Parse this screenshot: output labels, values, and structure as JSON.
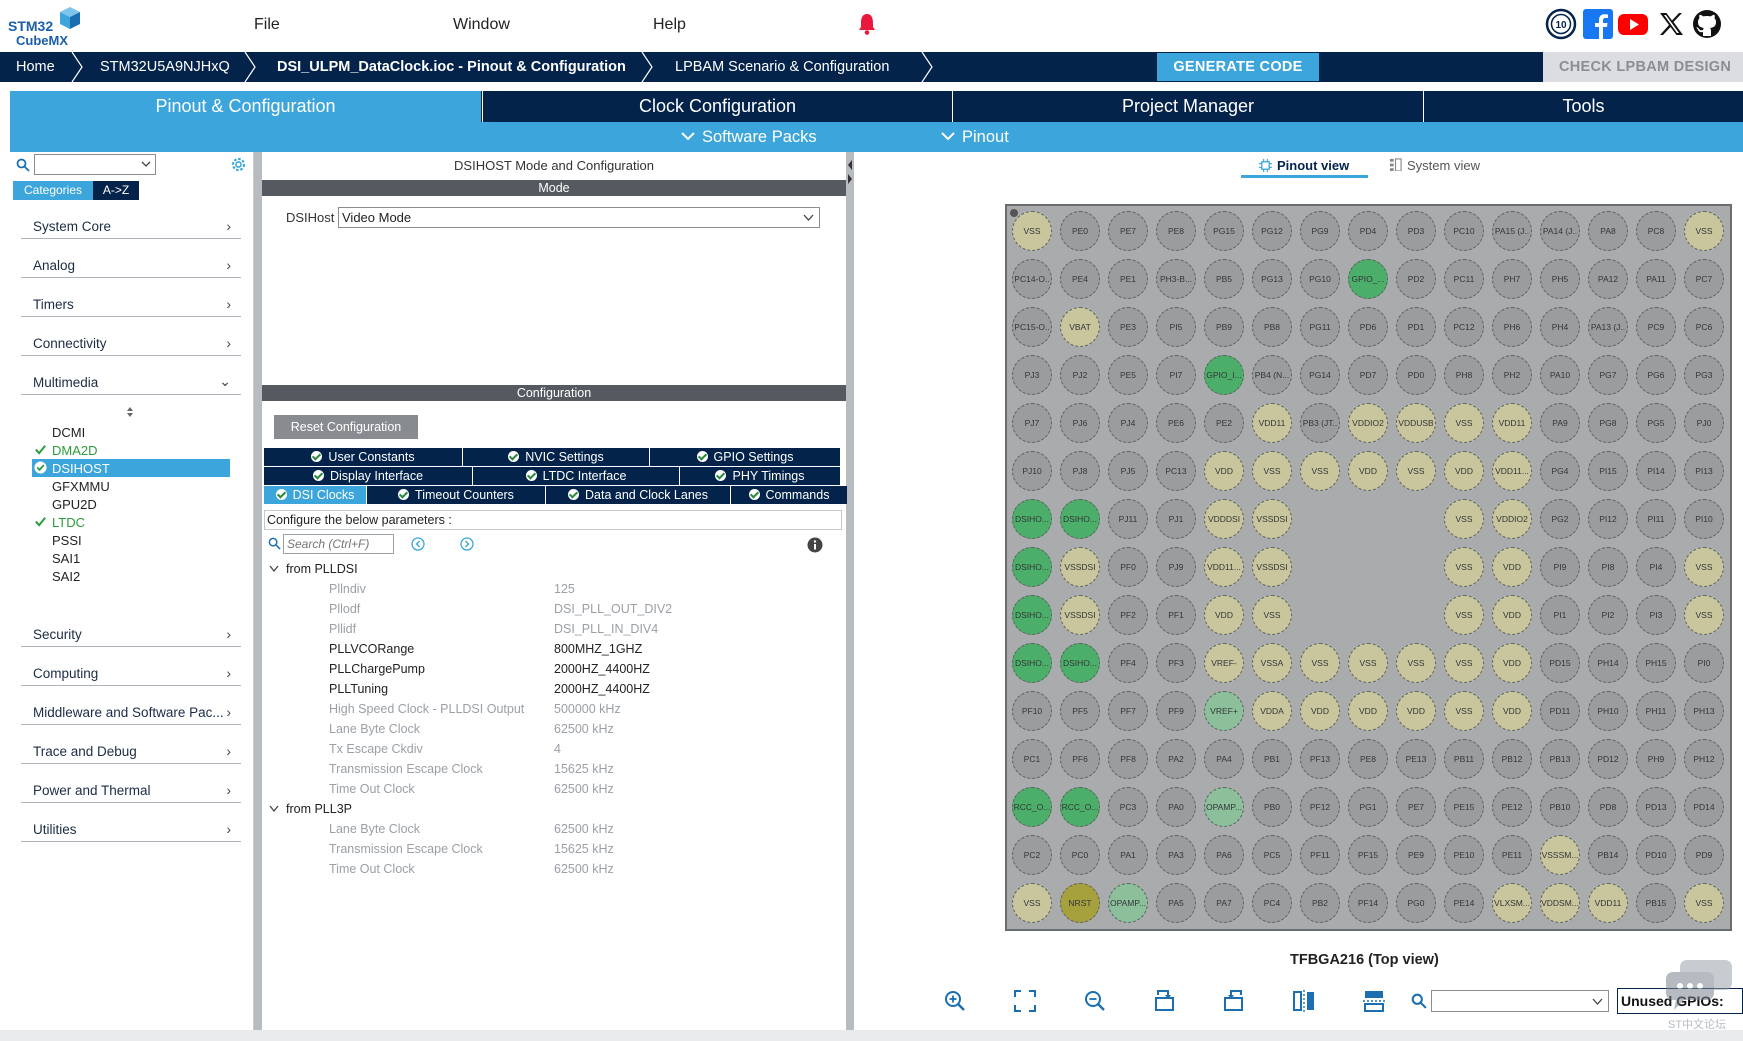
{
  "app": {
    "logo_line1": "STM32",
    "logo_line2": "CubeMX"
  },
  "menu": [
    "File",
    "Window",
    "Help"
  ],
  "breadcrumb": [
    "Home",
    "STM32U5A9NJHxQ",
    "DSI_ULPM_DataClock.ioc - Pinout & Configuration",
    "LPBAM Scenario & Configuration"
  ],
  "actions": {
    "generate": "GENERATE CODE",
    "check": "CHECK LPBAM DESIGN"
  },
  "tabs": [
    "Pinout & Configuration",
    "Clock Configuration",
    "Project Manager",
    "Tools"
  ],
  "subtabs": [
    "Software Packs",
    "Pinout"
  ],
  "left": {
    "toggle": [
      "Categories",
      "A->Z"
    ],
    "categories": [
      "System Core",
      "Analog",
      "Timers",
      "Connectivity",
      "Multimedia",
      "Security",
      "Computing",
      "Middleware and Software Pac...",
      "Trace and Debug",
      "Power and Thermal",
      "Utilities"
    ],
    "multimedia": [
      {
        "label": "DCMI",
        "state": "none"
      },
      {
        "label": "DMA2D",
        "state": "ok"
      },
      {
        "label": "DSIHOST",
        "state": "selected"
      },
      {
        "label": "GFXMMU",
        "state": "none"
      },
      {
        "label": "GPU2D",
        "state": "none"
      },
      {
        "label": "LTDC",
        "state": "ok"
      },
      {
        "label": "PSSI",
        "state": "none"
      },
      {
        "label": "SAI1",
        "state": "none"
      },
      {
        "label": "SAI2",
        "state": "none"
      }
    ]
  },
  "mid": {
    "title": "DSIHOST Mode and Configuration",
    "mode_header": "Mode",
    "dsihost_label": "DSIHost",
    "dsihost_value": "Video Mode",
    "config_header": "Configuration",
    "reset": "Reset Configuration",
    "tabs_row1": [
      "User Constants",
      "NVIC Settings",
      "GPIO Settings"
    ],
    "tabs_row2": [
      "Display Interface",
      "LTDC Interface",
      "PHY Timings"
    ],
    "tabs_row3": [
      "DSI Clocks",
      "Timeout Counters",
      "Data and Clock Lanes",
      "Commands"
    ],
    "configure_text": "Configure the below parameters :",
    "search_placeholder": "Search (Ctrl+F)",
    "group1": "from PLLDSI",
    "group2": "from PLL3P",
    "params1": [
      {
        "name": "Pllndiv",
        "value": "125",
        "dark": false
      },
      {
        "name": "Pllodf",
        "value": "DSI_PLL_OUT_DIV2",
        "dark": false
      },
      {
        "name": "Pllidf",
        "value": "DSI_PLL_IN_DIV4",
        "dark": false
      },
      {
        "name": "PLLVCORange",
        "value": "800MHZ_1GHZ",
        "dark": true
      },
      {
        "name": "PLLChargePump",
        "value": "2000HZ_4400HZ",
        "dark": true
      },
      {
        "name": "PLLTuning",
        "value": "2000HZ_4400HZ",
        "dark": true
      },
      {
        "name": "High Speed Clock - PLLDSI Output",
        "value": "500000 kHz",
        "dark": false
      },
      {
        "name": "Lane Byte Clock",
        "value": "62500 kHz",
        "dark": false
      },
      {
        "name": "Tx Escape Ckdiv",
        "value": "4",
        "dark": false
      },
      {
        "name": "Transmission Escape Clock",
        "value": "15625 kHz",
        "dark": false
      },
      {
        "name": "Time Out Clock",
        "value": "62500 kHz",
        "dark": false
      }
    ],
    "params2": [
      {
        "name": "Lane Byte Clock",
        "value": "62500 kHz",
        "dark": false
      },
      {
        "name": "Transmission Escape Clock",
        "value": "15625 kHz",
        "dark": false
      },
      {
        "name": "Time Out Clock",
        "value": "62500 kHz",
        "dark": false
      }
    ]
  },
  "right": {
    "views": [
      "Pinout view",
      "System view"
    ],
    "package": "TFBGA216 (Top view)",
    "unused": "Unused GPIOs:",
    "watermark": "ST中文论坛",
    "pin_colors": {
      "gray": "#9a9c9e",
      "khaki": "#c9c59d",
      "green": "#4caf69",
      "lightgreen": "#8cc09a",
      "olive": "#a6a13d"
    },
    "pins": [
      [
        "VSS:k",
        "PE0",
        "PE7",
        "PE8",
        "PG15",
        "PG12",
        "PG9",
        "PD4",
        "PD3",
        "PC10",
        "PA15 (J..",
        "PA14 (J..",
        "PA8",
        "PC8",
        "VSS:k"
      ],
      [
        "PC14-O..",
        "PE4",
        "PE1",
        "PH3-B...",
        "PB5",
        "PG13",
        "PG10",
        "GPIO_...:g",
        "PD2",
        "PC11",
        "PH7",
        "PH5",
        "PA12",
        "PA11",
        "PC7"
      ],
      [
        "PC15-O..",
        "VBAT:k",
        "PE3",
        "PI5",
        "PB9",
        "PB8",
        "PG11",
        "PD6",
        "PD1",
        "PC12",
        "PH6",
        "PH4",
        "PA13 (J..",
        "PC9",
        "PC6"
      ],
      [
        "PJ3",
        "PJ2",
        "PE5",
        "PI7",
        "GPIO_I...:g",
        "PB4 (N...",
        "PG14",
        "PD7",
        "PD0",
        "PH8",
        "PH2",
        "PA10",
        "PG7",
        "PG6",
        "PG3"
      ],
      [
        "PJ7",
        "PJ6",
        "PJ4",
        "PE6",
        "PE2",
        "VDD11:k",
        "PB3 (JT..",
        "VDDIO2:k",
        "VDDUSB:k",
        "VSS:k",
        "VDD11:k",
        "PA9",
        "PG8",
        "PG5",
        "PJ0"
      ],
      [
        "PJ10",
        "PJ8",
        "PJ5",
        "PC13",
        "VDD:k",
        "VSS:k",
        "VSS:k",
        "VDD:k",
        "VSS:k",
        "VDD:k",
        "VDD11...:k",
        "PG4",
        "PI15",
        "PI14",
        "PI13"
      ],
      [
        "DSIHO...:g",
        "DSIHO...:g",
        "PJ11",
        "PJ1",
        "VDDDSI:k",
        "VSSDSI:k",
        "",
        "",
        "",
        "VSS:k",
        "VDDIO2:k",
        "PG2",
        "PI12",
        "PI11",
        "PI10"
      ],
      [
        "DSIHO...:g",
        "VSSDSI:k",
        "PF0",
        "PJ9",
        "VDD11...:k",
        "VSSDSI:k",
        "",
        "",
        "",
        "VSS:k",
        "VDD:k",
        "PI9",
        "PI8",
        "PI4",
        "VSS:k"
      ],
      [
        "DSIHO...:g",
        "VSSDSI:k",
        "PF2",
        "PF1",
        "VDD:k",
        "VSS:k",
        "",
        "",
        "",
        "VSS:k",
        "VDD:k",
        "PI1",
        "PI2",
        "PI3",
        "VSS:k"
      ],
      [
        "DSIHO...:g",
        "DSIHO...:g",
        "PF4",
        "PF3",
        "VREF-:k",
        "VSSA:k",
        "VSS:k",
        "VSS:k",
        "VSS:k",
        "VSS:k",
        "VDD:k",
        "PD15",
        "PH14",
        "PH15",
        "PI0"
      ],
      [
        "PF10",
        "PF5",
        "PF7",
        "PF9",
        "VREF+:l",
        "VDDA:k",
        "VDD:k",
        "VDD:k",
        "VDD:k",
        "VSS:k",
        "VDD:k",
        "PD11",
        "PH10",
        "PH11",
        "PH13"
      ],
      [
        "PC1",
        "PF6",
        "PF8",
        "PA2",
        "PA4",
        "PB1",
        "PF13",
        "PE8",
        "PE13",
        "PB11",
        "PB12",
        "PB13",
        "PD12",
        "PH9",
        "PH12"
      ],
      [
        "RCC_O...:g",
        "RCC_O...:g",
        "PC3",
        "PA0",
        "OPAMP...:l",
        "PB0",
        "PF12",
        "PG1",
        "PE7",
        "PE15",
        "PE12",
        "PB10",
        "PD8",
        "PD13",
        "PD14"
      ],
      [
        "PC2",
        "PC0",
        "PA1",
        "PA3",
        "PA6",
        "PC5",
        "PF11",
        "PF15",
        "PE9",
        "PE10",
        "PE11",
        "VSSSM...:k",
        "PB14",
        "PD10",
        "PD9"
      ],
      [
        "VSS:k",
        "NRST:o",
        "OPAMP...:l",
        "PA5",
        "PA7",
        "PC4",
        "PB2",
        "PF14",
        "PG0",
        "PE14",
        "VLXSM...:k",
        "VDDSM...:k",
        "VDD11:k",
        "PB15",
        "VSS:k"
      ]
    ]
  }
}
